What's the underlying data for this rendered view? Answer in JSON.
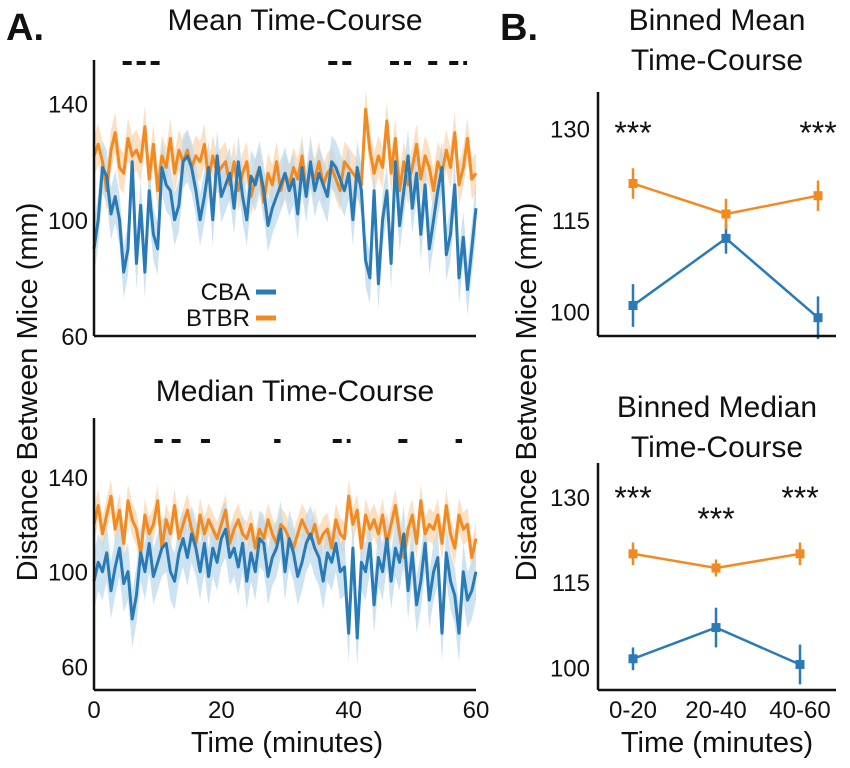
{
  "panel_labels": {
    "a": "A.",
    "b": "B."
  },
  "shared": {
    "left_ylabel": "Distance Between Mice (mm)",
    "right_ylabel": "Distance Between Mice (mm)",
    "left_xlabel": "Time (minutes)",
    "right_xlabel": "Time (minutes)"
  },
  "legend": {
    "entries": [
      {
        "label": "CBA",
        "color": "#2a7ab5"
      },
      {
        "label": "BTBR",
        "color": "#f28a22"
      }
    ],
    "placement": "center-left of top-left panel"
  },
  "colors": {
    "cba": "#2a7ab5",
    "btbr": "#f28a22",
    "cba_band": "#bcd9ee",
    "btbr_band": "#fbd5b0"
  },
  "chart_data": [
    {
      "id": "mean_tc",
      "type": "line",
      "title": "Mean Time-Course",
      "xlabel": "",
      "ylabel": "Distance Between Mice (mm)",
      "xlim": [
        0,
        60
      ],
      "ylim": [
        60,
        155
      ],
      "yticks": [
        60,
        100,
        140
      ],
      "xticks": [],
      "sig_segments": [
        [
          4.5,
          10.3
        ],
        [
          36.8,
          40.8
        ],
        [
          46.5,
          49.8
        ],
        [
          52.5,
          54.2
        ],
        [
          55.8,
          58.6
        ]
      ],
      "sig_dash_style": "short dashes",
      "series": [
        {
          "name": "CBA",
          "values": [
            90,
            100,
            118,
            115,
            102,
            108,
            100,
            82,
            90,
            120,
            85,
            105,
            82,
            110,
            95,
            90,
            118,
            112,
            110,
            100,
            105,
            120,
            122,
            118,
            110,
            100,
            108,
            118,
            100,
            122,
            108,
            112,
            116,
            104,
            120,
            108,
            100,
            115,
            112,
            118,
            110,
            98,
            104,
            108,
            112,
            116,
            110,
            114,
            102,
            118,
            108,
            120,
            110,
            116,
            112,
            108,
            120,
            118,
            114,
            110,
            116,
            100,
            118,
            110,
            86,
            80,
            110,
            78,
            100,
            110,
            85,
            120,
            98,
            110,
            122,
            104,
            116,
            95,
            112,
            90,
            100,
            110,
            118,
            88,
            95,
            112,
            80,
            94,
            76,
            90,
            104
          ],
          "band": 9
        },
        {
          "name": "BTBR",
          "values": [
            122,
            126,
            120,
            110,
            124,
            130,
            118,
            116,
            128,
            122,
            124,
            120,
            132,
            114,
            126,
            110,
            122,
            118,
            128,
            116,
            124,
            120,
            124,
            118,
            122,
            120,
            126,
            114,
            122,
            116,
            118,
            120,
            112,
            120,
            110,
            116,
            120,
            108,
            114,
            118,
            106,
            116,
            112,
            120,
            110,
            116,
            112,
            118,
            114,
            122,
            110,
            118,
            114,
            120,
            112,
            116,
            118,
            114,
            110,
            120,
            118,
            116,
            114,
            112,
            138,
            124,
            116,
            122,
            118,
            134,
            116,
            128,
            110,
            120,
            112,
            118,
            126,
            114,
            122,
            118,
            110,
            120,
            116,
            124,
            118,
            130,
            112,
            118,
            128,
            114,
            116
          ],
          "band": 7
        }
      ]
    },
    {
      "id": "median_tc",
      "type": "line",
      "title": "Median Time-Course",
      "xlabel": "Time (minutes)",
      "ylabel": "Distance Between Mice (mm)",
      "xlim": [
        0,
        60
      ],
      "ylim": [
        50,
        165
      ],
      "yticks": [
        60,
        100,
        140
      ],
      "xticks": [
        0,
        20,
        40,
        60
      ],
      "sig_segments": [
        [
          9.5,
          10.8
        ],
        [
          12.2,
          13.6
        ],
        [
          16.8,
          18.8
        ],
        [
          28.3,
          29.3
        ],
        [
          37.5,
          40.3
        ],
        [
          47.8,
          49.3
        ],
        [
          56.8,
          57.8
        ]
      ],
      "sig_dash_style": "short dashes",
      "series": [
        {
          "name": "CBA",
          "values": [
            96,
            104,
            100,
            108,
            92,
            102,
            110,
            95,
            100,
            80,
            90,
            108,
            100,
            112,
            98,
            104,
            110,
            112,
            100,
            96,
            108,
            114,
            106,
            116,
            110,
            100,
            112,
            98,
            110,
            104,
            114,
            118,
            106,
            110,
            102,
            112,
            96,
            108,
            100,
            114,
            112,
            98,
            106,
            110,
            118,
            100,
            114,
            108,
            98,
            104,
            112,
            116,
            110,
            106,
            96,
            108,
            104,
            112,
            100,
            102,
            74,
            110,
            72,
            104,
            100,
            112,
            86,
            106,
            100,
            114,
            96,
            110,
            104,
            116,
            92,
            108,
            86,
            96,
            112,
            88,
            100,
            106,
            74,
            108,
            96,
            90,
            74,
            100,
            88,
            92,
            100
          ],
          "band": 12
        },
        {
          "name": "BTBR",
          "values": [
            120,
            128,
            116,
            124,
            132,
            118,
            126,
            112,
            130,
            122,
            118,
            108,
            124,
            116,
            120,
            130,
            110,
            122,
            116,
            128,
            114,
            120,
            126,
            118,
            112,
            124,
            116,
            122,
            118,
            114,
            120,
            126,
            112,
            118,
            122,
            116,
            114,
            120,
            110,
            118,
            114,
            122,
            116,
            112,
            120,
            118,
            114,
            110,
            116,
            122,
            118,
            114,
            120,
            112,
            116,
            118,
            110,
            122,
            116,
            114,
            132,
            120,
            126,
            110,
            124,
            118,
            122,
            116,
            124,
            112,
            120,
            128,
            116,
            106,
            118,
            124,
            112,
            130,
            116,
            120,
            118,
            124,
            112,
            128,
            116,
            110,
            124,
            118,
            120,
            106,
            114
          ],
          "band": 7
        }
      ]
    },
    {
      "id": "binned_mean",
      "type": "line",
      "title": "Binned Mean Time-Course",
      "title_lines": [
        "Binned Mean",
        "Time-Course"
      ],
      "xlabel": "",
      "ylabel": "Distance Between Mice (mm)",
      "categories": [
        "0-20",
        "20-40",
        "40-60"
      ],
      "ylim": [
        96,
        136
      ],
      "yticks": [
        100,
        115,
        130
      ],
      "significance": [
        "***",
        "",
        "***"
      ],
      "series": [
        {
          "name": "CBA",
          "values": [
            101,
            112,
            99
          ],
          "errors": [
            3.5,
            2.5,
            3.5
          ]
        },
        {
          "name": "BTBR",
          "values": [
            121,
            116,
            119
          ],
          "errors": [
            2.5,
            2.5,
            2.5
          ]
        }
      ]
    },
    {
      "id": "binned_median",
      "type": "line",
      "title": "Binned Median Time-Course",
      "title_lines": [
        "Binned Median",
        "Time-Course"
      ],
      "xlabel": "Time (minutes)",
      "ylabel": "Distance Between Mice (mm)",
      "categories": [
        "0-20",
        "20-40",
        "40-60"
      ],
      "ylim": [
        96,
        136
      ],
      "yticks": [
        100,
        115,
        130
      ],
      "significance": [
        "***",
        "***",
        "***"
      ],
      "series": [
        {
          "name": "CBA",
          "values": [
            101.5,
            107,
            100.5
          ],
          "errors": [
            2,
            3.5,
            3.5
          ]
        },
        {
          "name": "BTBR",
          "values": [
            120,
            117.5,
            120
          ],
          "errors": [
            2,
            1.5,
            2
          ]
        }
      ]
    }
  ]
}
